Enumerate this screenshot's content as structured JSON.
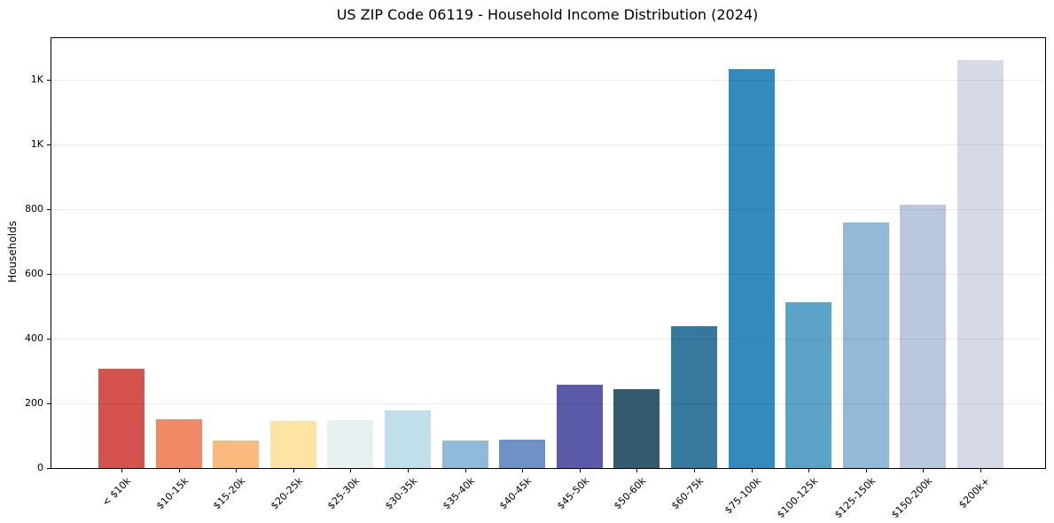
{
  "figure": {
    "title": "US ZIP Code 06119 - Household Income Distribution (2024)"
  },
  "chart_data": {
    "type": "bar",
    "title": "US ZIP Code 06119 - Household Income Distribution (2024)",
    "xlabel": "",
    "ylabel": "Households",
    "categories": [
      "< $10k",
      "$10-15k",
      "$15-20k",
      "$20-25k",
      "$25-30k",
      "$30-35k",
      "$35-40k",
      "$40-45k",
      "$45-50k",
      "$50-60k",
      "$60-75k",
      "$75-100k",
      "$100-125k",
      "$125-150k",
      "$150-200k",
      "$200k+"
    ],
    "values": [
      306,
      152,
      85,
      146,
      147,
      178,
      86,
      88,
      258,
      243,
      440,
      1233,
      513,
      760,
      815,
      1261
    ],
    "bar_colors": [
      "#d5534e",
      "#f08a66",
      "#f9ba7b",
      "#fde3a4",
      "#e7f1f2",
      "#bfe0ea",
      "#91bad9",
      "#6e92c8",
      "#5a5aa8",
      "#345a6e",
      "#37789d",
      "#338abc",
      "#5ba3c7",
      "#92b9d5",
      "#b9c8df",
      "#d6d9e6"
    ],
    "ylim": [
      0,
      1330
    ],
    "yticks": [
      {
        "value": 0,
        "label": "0"
      },
      {
        "value": 200,
        "label": "200"
      },
      {
        "value": 400,
        "label": "400"
      },
      {
        "value": 600,
        "label": "600"
      },
      {
        "value": 800,
        "label": "800"
      },
      {
        "value": 1000,
        "label": "1K"
      },
      {
        "value": 1200,
        "label": "1K"
      }
    ],
    "grid": "horizontal",
    "legend": "none",
    "colors": {
      "background": "#ffffff",
      "gridline": "#ebebeb",
      "spine": "#000000",
      "text": "#000000"
    }
  }
}
